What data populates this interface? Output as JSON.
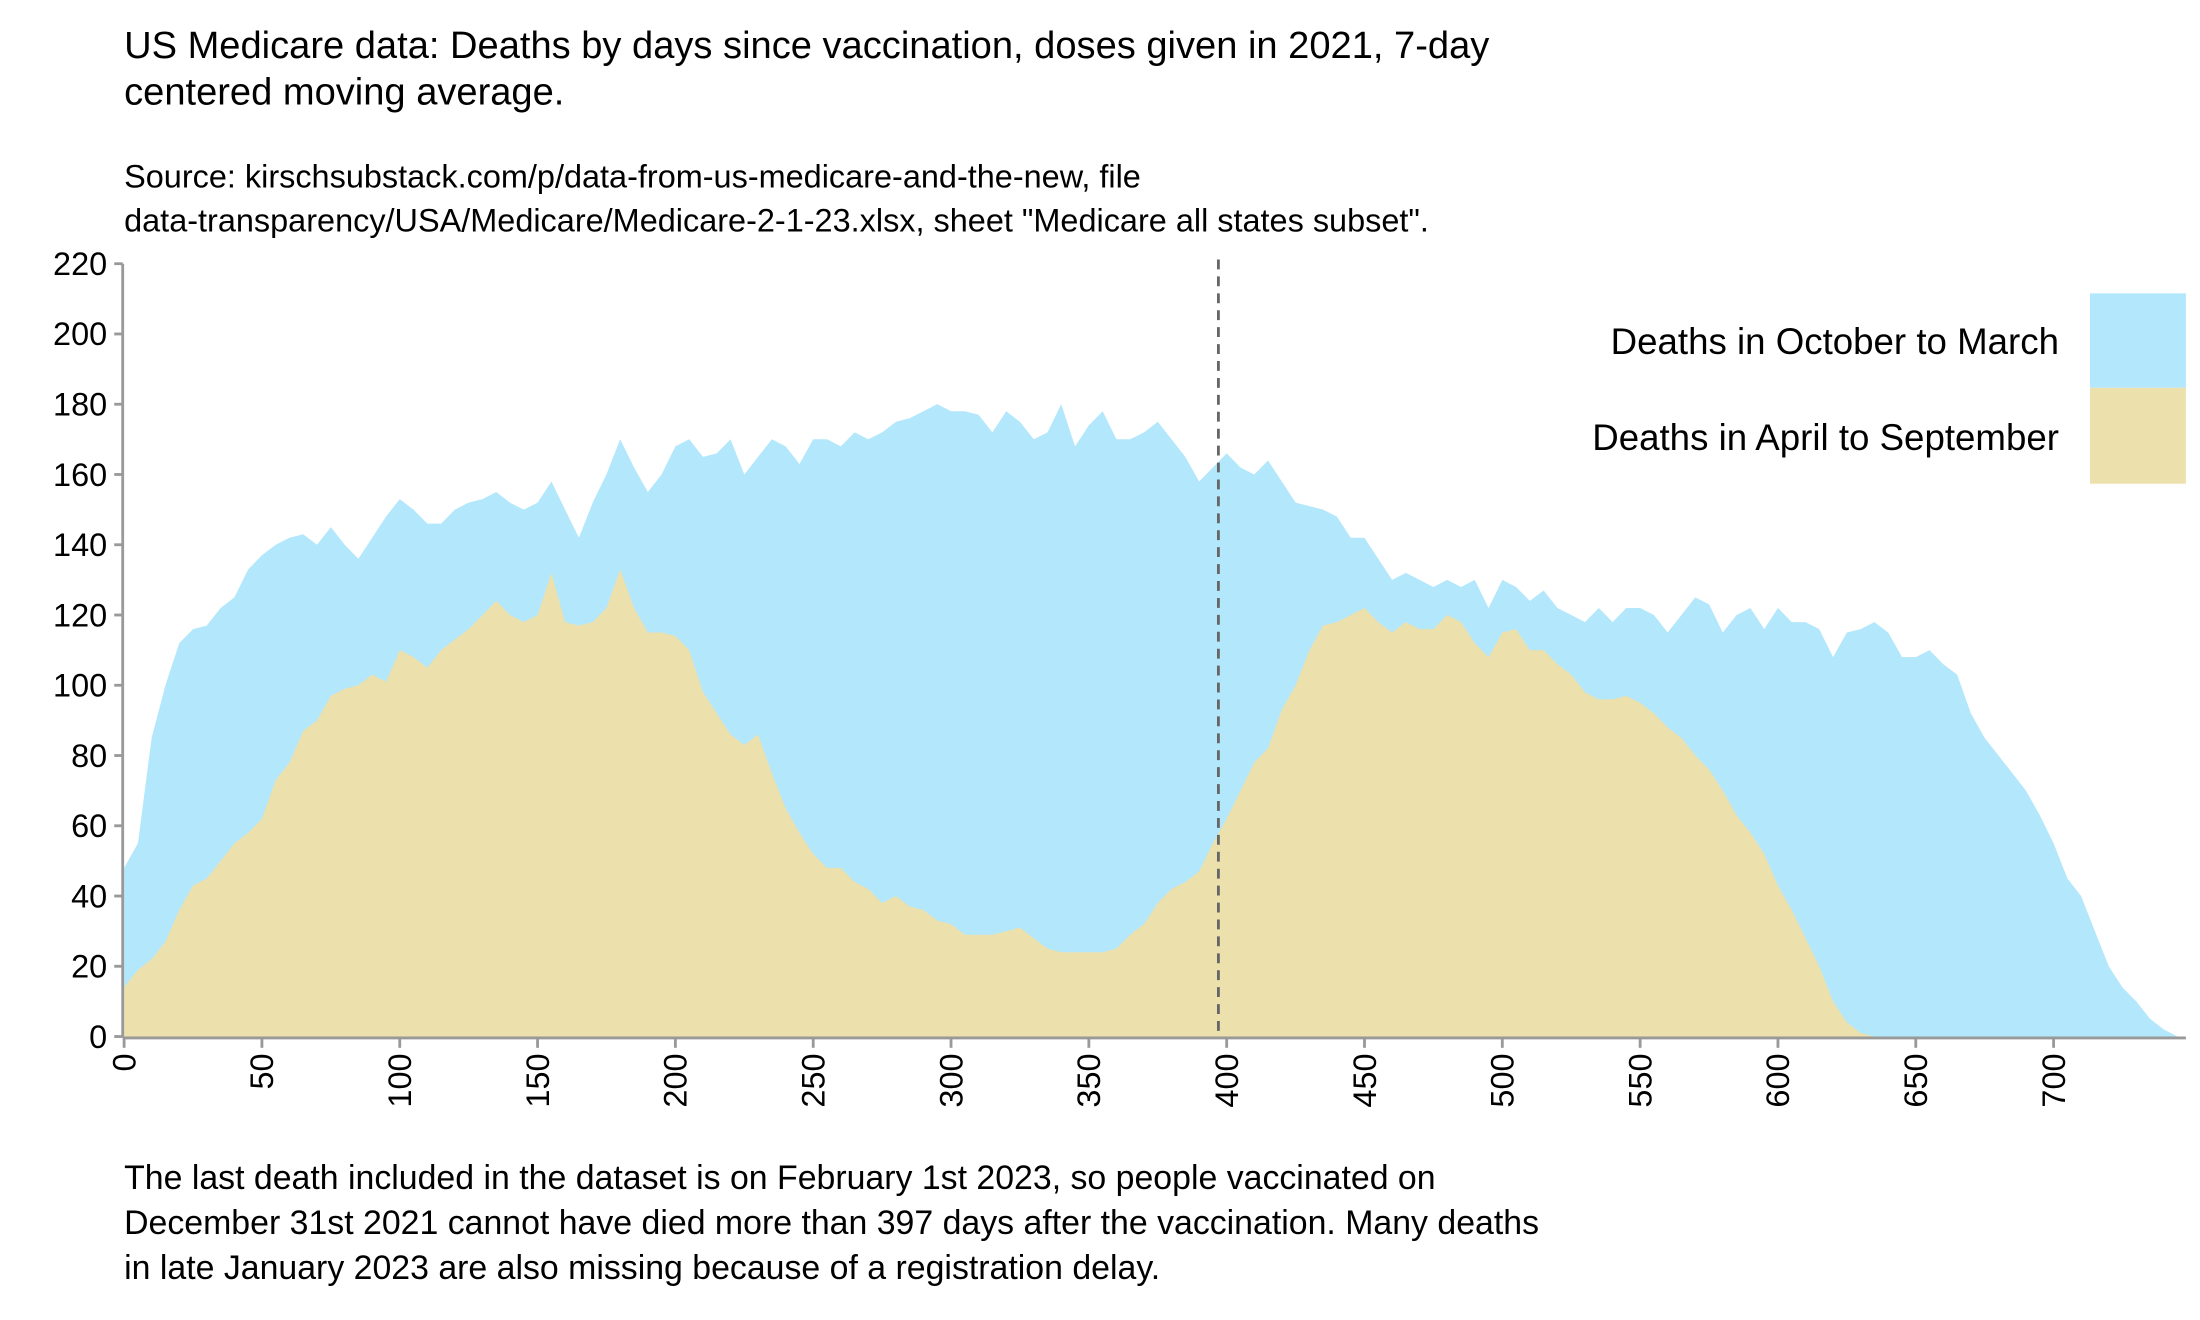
{
  "title": "US Medicare data: Deaths by days since vaccination, doses given in 2021, 7-day\ncentered moving average.",
  "subtitle": "Source: kirschsubstack.com/p/data-from-us-medicare-and-the-new, file\ndata-transparency/USA/Medicare/Medicare-2-1-23.xlsx, sheet \"Medicare all states subset\".",
  "footnote": "The last death included in the dataset is on February 1st 2023, so people vaccinated on\nDecember 31st 2021 cannot have died more than 397 days after the vaccination. Many deaths\nin late January 2023 are also missing because of a registration delay.",
  "chart_data": {
    "type": "area",
    "title": "US Medicare data: Deaths by days since vaccination, doses given in 2021, 7-day centered moving average.",
    "xlabel": "",
    "ylabel": "",
    "xlim": [
      0,
      748
    ],
    "ylim": [
      0,
      220
    ],
    "xticks": [
      0,
      50,
      100,
      150,
      200,
      250,
      300,
      350,
      400,
      450,
      500,
      550,
      600,
      650,
      700
    ],
    "yticks": [
      0,
      20,
      40,
      60,
      80,
      100,
      120,
      140,
      160,
      180,
      200,
      220
    ],
    "vline": {
      "x": 397,
      "style": "dashed"
    },
    "legend_position": "top-right",
    "x": [
      0,
      5,
      10,
      15,
      20,
      25,
      30,
      35,
      40,
      45,
      50,
      55,
      60,
      65,
      70,
      75,
      80,
      85,
      90,
      95,
      100,
      105,
      110,
      115,
      120,
      125,
      130,
      135,
      140,
      145,
      150,
      155,
      160,
      165,
      170,
      175,
      180,
      185,
      190,
      195,
      200,
      205,
      210,
      215,
      220,
      225,
      230,
      235,
      240,
      245,
      250,
      255,
      260,
      265,
      270,
      275,
      280,
      285,
      290,
      295,
      300,
      305,
      310,
      315,
      320,
      325,
      330,
      335,
      340,
      345,
      350,
      355,
      360,
      365,
      370,
      375,
      380,
      385,
      390,
      395,
      400,
      405,
      410,
      415,
      420,
      425,
      430,
      435,
      440,
      445,
      450,
      455,
      460,
      465,
      470,
      475,
      480,
      485,
      490,
      495,
      500,
      505,
      510,
      515,
      520,
      525,
      530,
      535,
      540,
      545,
      550,
      555,
      560,
      565,
      570,
      575,
      580,
      585,
      590,
      595,
      600,
      605,
      610,
      615,
      620,
      625,
      630,
      635,
      640,
      645,
      650,
      655,
      660,
      665,
      670,
      675,
      680,
      685,
      690,
      695,
      700,
      705,
      710,
      715,
      720,
      725,
      730,
      735,
      740,
      745
    ],
    "series": [
      {
        "name": "Deaths in October to March",
        "color": "#b3e7fb",
        "values": [
          48,
          55,
          85,
          100,
          112,
          116,
          117,
          122,
          125,
          133,
          137,
          140,
          142,
          143,
          140,
          145,
          140,
          136,
          142,
          148,
          153,
          150,
          146,
          146,
          150,
          152,
          153,
          155,
          152,
          150,
          152,
          158,
          150,
          142,
          152,
          160,
          170,
          162,
          155,
          160,
          168,
          170,
          165,
          166,
          170,
          160,
          165,
          170,
          168,
          163,
          170,
          170,
          168,
          172,
          170,
          172,
          175,
          176,
          178,
          180,
          178,
          178,
          177,
          172,
          178,
          175,
          170,
          172,
          180,
          168,
          174,
          178,
          170,
          170,
          172,
          175,
          170,
          165,
          158,
          162,
          166,
          162,
          160,
          164,
          158,
          152,
          151,
          150,
          148,
          142,
          142,
          136,
          130,
          132,
          130,
          128,
          130,
          128,
          130,
          122,
          130,
          128,
          124,
          127,
          122,
          120,
          118,
          122,
          118,
          122,
          122,
          120,
          115,
          120,
          125,
          123,
          115,
          120,
          122,
          116,
          122,
          118,
          118,
          116,
          108,
          115,
          116,
          118,
          115,
          108,
          108,
          110,
          106,
          103,
          92,
          85,
          80,
          75,
          70,
          63,
          55,
          45,
          40,
          30,
          20,
          14,
          10,
          5,
          2,
          0
        ]
      },
      {
        "name": "Deaths in April to September",
        "color": "#ece0ad",
        "values": [
          14,
          19,
          22,
          27,
          36,
          43,
          45,
          50,
          55,
          58,
          62,
          73,
          78,
          87,
          90,
          97,
          99,
          100,
          103,
          101,
          110,
          108,
          105,
          110,
          113,
          116,
          120,
          124,
          120,
          118,
          120,
          132,
          118,
          117,
          118,
          122,
          133,
          122,
          115,
          115,
          114,
          110,
          98,
          92,
          86,
          83,
          86,
          75,
          65,
          58,
          52,
          48,
          48,
          44,
          42,
          38,
          40,
          37,
          36,
          33,
          32,
          29,
          29,
          29,
          30,
          31,
          28,
          25,
          24,
          24,
          24,
          24,
          25,
          29,
          32,
          38,
          42,
          44,
          47,
          55,
          62,
          70,
          78,
          82,
          93,
          100,
          110,
          117,
          118,
          120,
          122,
          118,
          115,
          118,
          116,
          116,
          120,
          118,
          112,
          108,
          115,
          116,
          110,
          110,
          106,
          103,
          98,
          96,
          96,
          97,
          95,
          92,
          88,
          85,
          80,
          76,
          70,
          63,
          58,
          52,
          43,
          36,
          28,
          20,
          10,
          4,
          1,
          0,
          0,
          0,
          0,
          0,
          0,
          0,
          0,
          0,
          0,
          0,
          0,
          0,
          0,
          0,
          0,
          0,
          0,
          0,
          0,
          0,
          0,
          0
        ]
      }
    ]
  }
}
